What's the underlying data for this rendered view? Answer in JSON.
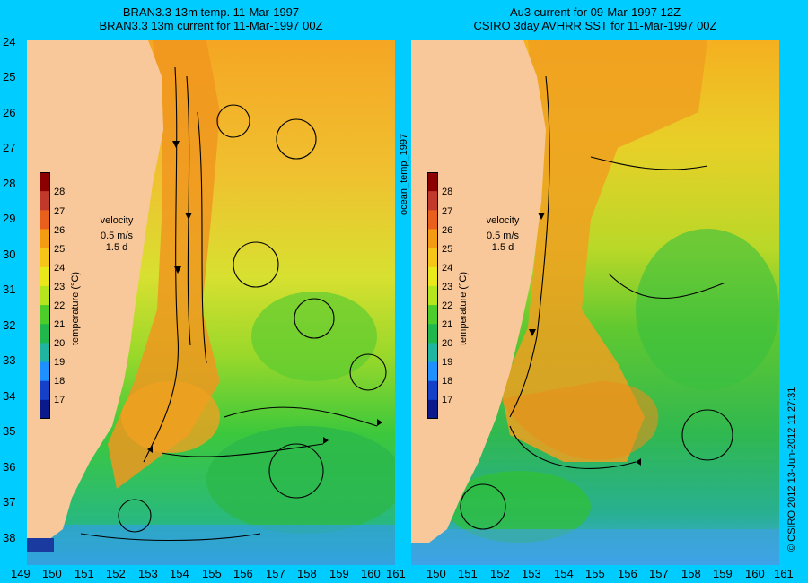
{
  "left_panel": {
    "title_line1": "BRAN3.3 13m temp. 11-Mar-1997",
    "title_line2": "BRAN3.3 13m current for 11-Mar-1997 00Z"
  },
  "right_panel": {
    "title_line1": "Au3 current for 09-Mar-1997 12Z",
    "title_line2": "CSIRO 3day AVHRR SST for 11-Mar-1997 00Z"
  },
  "y_ticks": [
    "24",
    "25",
    "26",
    "27",
    "28",
    "29",
    "30",
    "31",
    "32",
    "33",
    "34",
    "35",
    "36",
    "37",
    "38"
  ],
  "left_x_ticks": [
    "149",
    "150",
    "151",
    "152",
    "153",
    "154",
    "155",
    "156",
    "157",
    "158",
    "159",
    "160",
    "161"
  ],
  "right_x_ticks": [
    "150",
    "151",
    "152",
    "153",
    "154",
    "155",
    "156",
    "157",
    "158",
    "159",
    "160",
    "161"
  ],
  "colorbar": {
    "ticks": [
      "28",
      "27",
      "26",
      "25",
      "24",
      "23",
      "22",
      "21",
      "20",
      "19",
      "18",
      "17"
    ],
    "label": "temperature (°C)",
    "colors": [
      "#8b0000",
      "#c0392b",
      "#e8601c",
      "#f39c12",
      "#f5c518",
      "#e8e81a",
      "#b5e51d",
      "#4ccd2a",
      "#20b84c",
      "#1fb5a0",
      "#1e90ff",
      "#1540c8",
      "#0a1a8c"
    ]
  },
  "velocity_legend": {
    "line1": "velocity",
    "line2": "0.5 m/s",
    "line3": "1.5 d"
  },
  "middle_label": "ocean_temp_1997",
  "credit": "© CSIRO 2012   13-Jun-2012 11:27:31"
}
